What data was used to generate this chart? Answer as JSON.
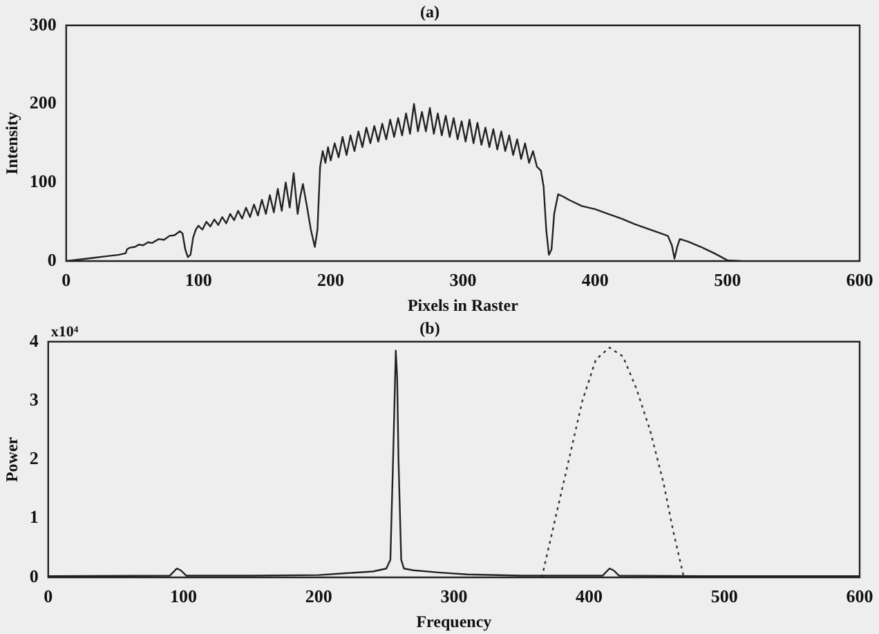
{
  "chart_data": [
    {
      "type": "line",
      "title": "(a)",
      "xlabel": "Pixels in Raster",
      "ylabel": "Intensity",
      "xlim": [
        0,
        600
      ],
      "xticks": [
        0,
        100,
        200,
        300,
        400,
        500,
        600
      ],
      "ylim": [
        0,
        300
      ],
      "yticks": [
        0,
        100,
        200,
        300
      ],
      "grid": false,
      "legend": false,
      "marker": "none",
      "series": [
        {
          "color": "#222222",
          "line_style": "solid",
          "x": [
            0,
            10,
            20,
            30,
            40,
            45,
            46,
            48,
            52,
            55,
            58,
            62,
            65,
            70,
            74,
            78,
            82,
            86,
            88,
            90,
            92,
            94,
            96,
            98,
            100,
            103,
            106,
            109,
            112,
            115,
            118,
            121,
            124,
            127,
            130,
            133,
            136,
            139,
            142,
            145,
            148,
            151,
            154,
            157,
            160,
            163,
            166,
            169,
            172,
            175,
            177,
            179,
            182,
            185,
            188,
            190,
            192,
            194,
            196,
            198,
            200,
            203,
            206,
            209,
            212,
            215,
            218,
            221,
            224,
            227,
            230,
            233,
            236,
            239,
            242,
            245,
            248,
            251,
            254,
            257,
            260,
            263,
            266,
            269,
            272,
            275,
            278,
            281,
            284,
            287,
            290,
            293,
            296,
            299,
            302,
            305,
            308,
            311,
            314,
            317,
            320,
            323,
            326,
            329,
            332,
            335,
            338,
            341,
            344,
            347,
            350,
            353,
            356,
            359,
            361,
            363,
            365,
            367,
            369,
            372,
            376,
            380,
            390,
            400,
            410,
            420,
            430,
            440,
            450,
            455,
            458,
            460,
            462,
            464,
            470,
            480,
            490,
            500,
            510
          ],
          "values": [
            0,
            2,
            4,
            6,
            8,
            10,
            15,
            17,
            18,
            21,
            20,
            24,
            23,
            28,
            27,
            32,
            33,
            38,
            35,
            15,
            5,
            8,
            30,
            40,
            45,
            40,
            50,
            44,
            53,
            46,
            56,
            48,
            60,
            52,
            64,
            54,
            68,
            56,
            72,
            58,
            78,
            60,
            84,
            62,
            92,
            64,
            100,
            68,
            112,
            60,
            82,
            98,
            70,
            40,
            18,
            40,
            120,
            140,
            125,
            145,
            128,
            150,
            132,
            158,
            135,
            160,
            140,
            165,
            145,
            170,
            150,
            172,
            152,
            175,
            155,
            180,
            158,
            182,
            160,
            188,
            162,
            200,
            165,
            190,
            165,
            195,
            162,
            188,
            160,
            185,
            158,
            182,
            155,
            178,
            152,
            180,
            150,
            176,
            148,
            170,
            145,
            168,
            142,
            165,
            140,
            160,
            135,
            155,
            130,
            150,
            125,
            140,
            120,
            115,
            95,
            40,
            8,
            15,
            60,
            85,
            82,
            78,
            70,
            66,
            60,
            54,
            47,
            41,
            35,
            32,
            20,
            3,
            18,
            28,
            25,
            18,
            10,
            1,
            0
          ]
        }
      ]
    },
    {
      "type": "line",
      "title": "(b)",
      "xlabel": "Frequency",
      "ylabel": "Power",
      "annotations": [
        "x10⁴"
      ],
      "xlim": [
        0,
        600
      ],
      "xticks": [
        0,
        100,
        200,
        300,
        400,
        500,
        600
      ],
      "ylim": [
        0,
        4
      ],
      "yticks": [
        0,
        1,
        2,
        3,
        4
      ],
      "grid": false,
      "legend": false,
      "marker": "none",
      "series": [
        {
          "color": "#222222",
          "line_style": "solid",
          "x": [
            0,
            90,
            95,
            98,
            102,
            150,
            200,
            220,
            240,
            250,
            253,
            255,
            257,
            258,
            259,
            261,
            263,
            270,
            290,
            310,
            350,
            410,
            415,
            418,
            422,
            500,
            600
          ],
          "values": [
            0.02,
            0.03,
            0.15,
            0.12,
            0.03,
            0.03,
            0.04,
            0.07,
            0.1,
            0.15,
            0.3,
            2,
            3.85,
            3.4,
            2,
            0.3,
            0.15,
            0.12,
            0.08,
            0.05,
            0.03,
            0.03,
            0.15,
            0.12,
            0.03,
            0.02,
            0.02
          ]
        },
        {
          "color": "#333333",
          "line_style": "dotted",
          "x": [
            365,
            375,
            385,
            395,
            405,
            415,
            425,
            435,
            445,
            455,
            462,
            470
          ],
          "values": [
            0,
            1,
            2,
            3,
            3.7,
            3.9,
            3.75,
            3.2,
            2.5,
            1.6,
            0.8,
            0
          ]
        }
      ]
    }
  ]
}
